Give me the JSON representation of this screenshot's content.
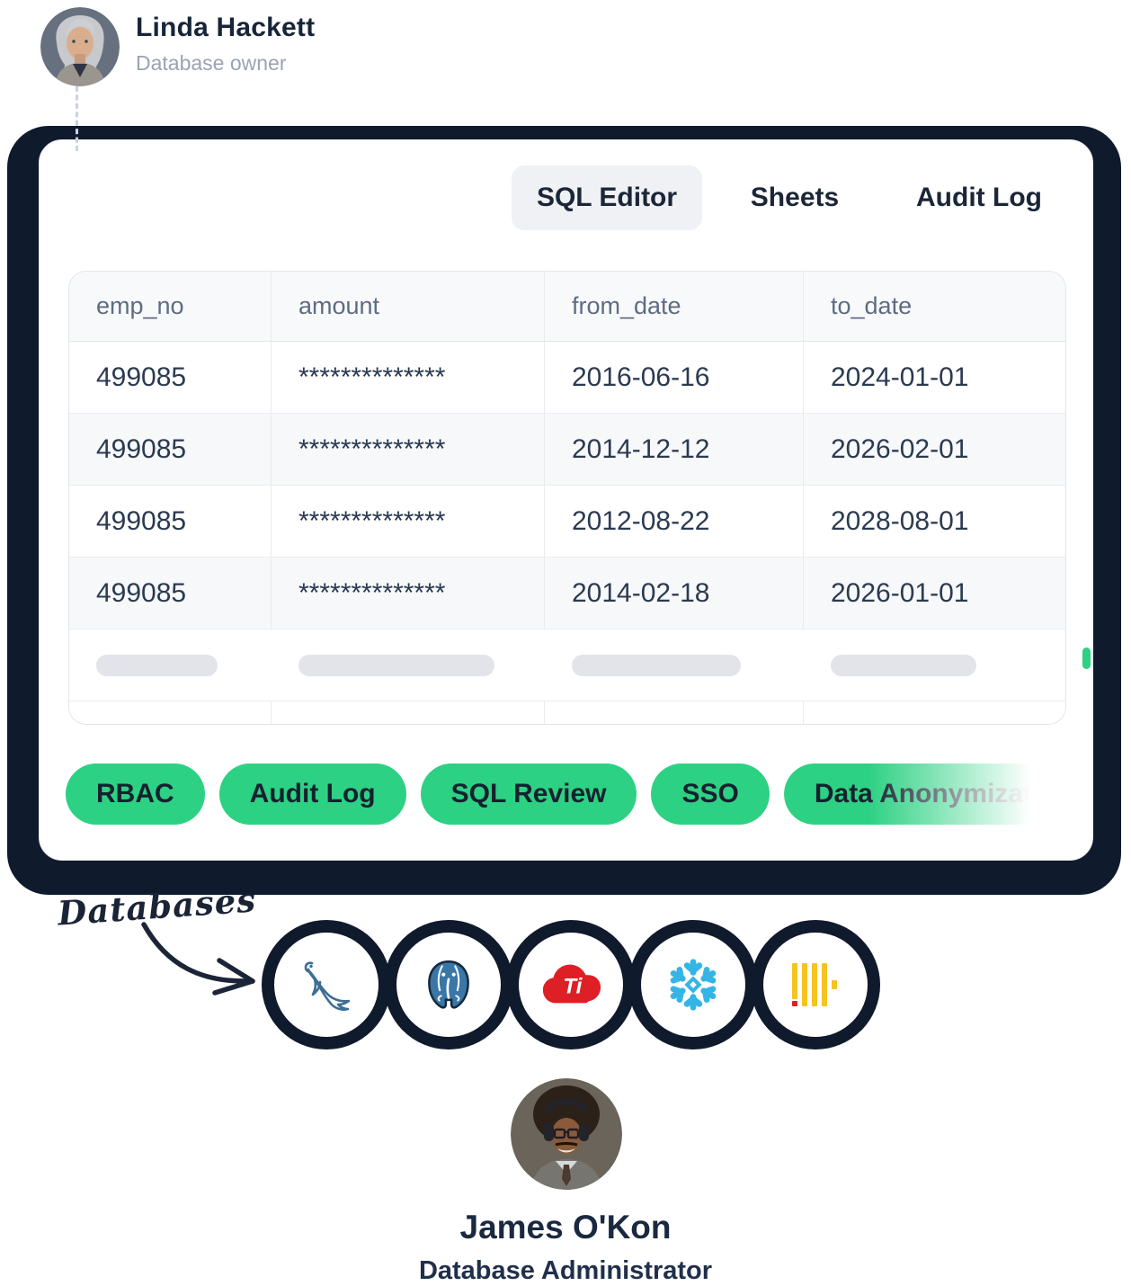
{
  "owner": {
    "name": "Linda Hackett",
    "role": "Database owner"
  },
  "card": {
    "tabs": [
      {
        "label": "SQL Editor",
        "active": true
      },
      {
        "label": "Sheets",
        "active": false
      },
      {
        "label": "Audit Log",
        "active": false
      }
    ],
    "table": {
      "columns": [
        "emp_no",
        "amount",
        "from_date",
        "to_date"
      ],
      "rows": [
        [
          "499085",
          "**************",
          "2016-06-16",
          "2024-01-01"
        ],
        [
          "499085",
          "**************",
          "2014-12-12",
          "2026-02-01"
        ],
        [
          "499085",
          "**************",
          "2012-08-22",
          "2028-08-01"
        ],
        [
          "499085",
          "**************",
          "2014-02-18",
          "2026-01-01"
        ]
      ],
      "skeleton_bar_widths": [
        135,
        218,
        188,
        162
      ]
    },
    "features": [
      "RBAC",
      "Audit Log",
      "SQL Review",
      "SSO",
      "Data Anonymization"
    ]
  },
  "databases": {
    "label": "Databases",
    "items": [
      "MySQL",
      "PostgreSQL",
      "TiDB Cloud",
      "Snowflake",
      "ClickHouse"
    ],
    "tidb_mark": "Ti"
  },
  "admin": {
    "name": "James O'Kon",
    "role": "Database Administrator"
  },
  "colors": {
    "accent_green": "#2DD183",
    "shadow_navy": "#101A2D",
    "text_navy": "#1B2638",
    "header_text": "#5E6C81",
    "cell_text": "#2B3A51",
    "mysql_blue": "#3D6E93",
    "postgres_blue": "#3A76A6",
    "tidb_red": "#DF1F26",
    "snowflake_blue": "#35B5E5",
    "clickhouse_yellow": "#F5C41E",
    "clickhouse_red": "#D6232A"
  }
}
